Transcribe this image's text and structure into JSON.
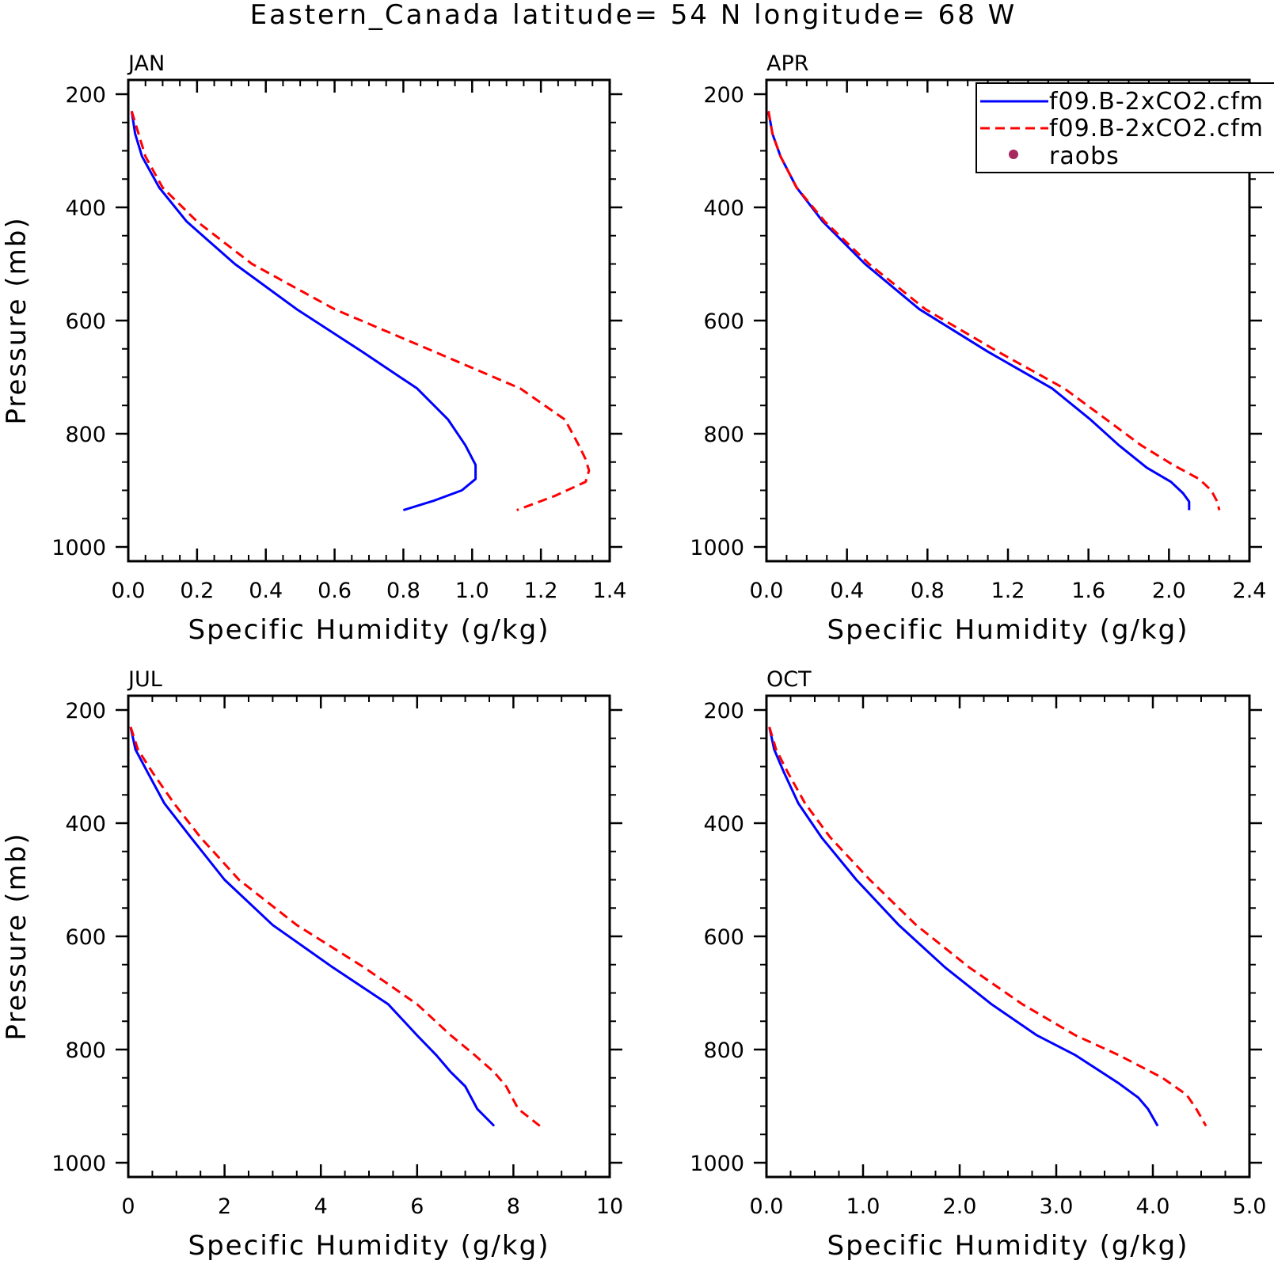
{
  "figure": {
    "title": "Eastern_Canada  latitude= 54 N longitude= 68 W"
  },
  "colors": {
    "series1": "#0000ff",
    "series2": "#ff0000",
    "raobs": "#a52a5f",
    "axes": "#000000"
  },
  "legend": {
    "placement": "top-right of APR panel",
    "entries": [
      {
        "label": "f09.B-2xCO2.cfm",
        "style": "solid",
        "color": "#0000ff"
      },
      {
        "label": "f09.B-2xCO2.cfm",
        "style": "dashed",
        "color": "#ff0000"
      },
      {
        "label": "raobs",
        "style": "marker",
        "color": "#a52a5f"
      }
    ]
  },
  "chart_data": [
    {
      "type": "line",
      "title": "JAN",
      "xlabel": "Specific Humidity (g/kg)",
      "ylabel": "Pressure (mb)",
      "xlim": [
        0,
        1.4
      ],
      "ylim": [
        200,
        1000
      ],
      "y_inverted": true,
      "xticks": [
        "0.0",
        "0.2",
        "0.4",
        "0.6",
        "0.8",
        "1.0",
        "1.2",
        "1.4"
      ],
      "yticks": [
        "200",
        "400",
        "600",
        "800",
        "1000"
      ],
      "series": [
        {
          "style": "solid",
          "color": "#0000ff",
          "x": [
            0.01,
            0.02,
            0.04,
            0.09,
            0.17,
            0.31,
            0.49,
            0.68,
            0.84,
            0.93,
            0.98,
            1.01,
            1.01,
            0.97,
            0.89,
            0.8
          ],
          "y": [
            230,
            270,
            310,
            365,
            425,
            500,
            580,
            655,
            720,
            775,
            820,
            855,
            880,
            900,
            918,
            935
          ]
        },
        {
          "style": "dashed",
          "color": "#ff0000",
          "x": [
            0.01,
            0.03,
            0.05,
            0.1,
            0.2,
            0.36,
            0.6,
            0.89,
            1.14,
            1.27,
            1.31,
            1.33,
            1.34,
            1.33,
            1.24,
            1.13
          ],
          "y": [
            230,
            270,
            310,
            365,
            425,
            500,
            580,
            655,
            720,
            775,
            820,
            845,
            865,
            885,
            910,
            935
          ]
        }
      ]
    },
    {
      "type": "line",
      "title": "APR",
      "xlabel": "Specific Humidity (g/kg)",
      "ylabel": "",
      "xlim": [
        0,
        2.4
      ],
      "ylim": [
        200,
        1000
      ],
      "y_inverted": true,
      "xticks": [
        "0.0",
        "0.4",
        "0.8",
        "1.2",
        "1.6",
        "2.0",
        "2.4"
      ],
      "yticks": [
        "200",
        "400",
        "600",
        "800",
        "1000"
      ],
      "series": [
        {
          "style": "solid",
          "color": "#0000ff",
          "x": [
            0.01,
            0.03,
            0.07,
            0.15,
            0.28,
            0.49,
            0.76,
            1.1,
            1.42,
            1.61,
            1.75,
            1.89,
            2.01,
            2.07,
            2.1,
            2.1
          ],
          "y": [
            230,
            270,
            310,
            365,
            425,
            500,
            580,
            655,
            720,
            775,
            820,
            860,
            885,
            905,
            920,
            935
          ]
        },
        {
          "style": "dashed",
          "color": "#ff0000",
          "x": [
            0.01,
            0.03,
            0.07,
            0.15,
            0.29,
            0.51,
            0.79,
            1.15,
            1.48,
            1.69,
            1.86,
            2.02,
            2.15,
            2.21,
            2.24,
            2.25
          ],
          "y": [
            230,
            270,
            310,
            365,
            425,
            500,
            580,
            655,
            720,
            775,
            820,
            855,
            880,
            900,
            920,
            935
          ]
        }
      ]
    },
    {
      "type": "line",
      "title": "JUL",
      "xlabel": "Specific Humidity (g/kg)",
      "ylabel": "Pressure (mb)",
      "xlim": [
        0,
        10
      ],
      "ylim": [
        200,
        1000
      ],
      "y_inverted": true,
      "xticks": [
        "0",
        "2",
        "4",
        "6",
        "8",
        "10"
      ],
      "yticks": [
        "200",
        "400",
        "600",
        "800",
        "1000"
      ],
      "series": [
        {
          "style": "solid",
          "color": "#0000ff",
          "x": [
            0.05,
            0.15,
            0.4,
            0.75,
            1.3,
            2.0,
            3.0,
            4.25,
            5.4,
            6.0,
            6.4,
            6.7,
            7.0,
            7.25,
            7.6
          ],
          "y": [
            230,
            270,
            310,
            365,
            425,
            500,
            580,
            655,
            720,
            775,
            810,
            840,
            865,
            905,
            935
          ]
        },
        {
          "style": "dashed",
          "color": "#ff0000",
          "x": [
            0.05,
            0.2,
            0.5,
            0.95,
            1.5,
            2.3,
            3.5,
            4.9,
            6.0,
            6.7,
            7.2,
            7.6,
            7.85,
            8.1,
            8.55
          ],
          "y": [
            230,
            270,
            310,
            365,
            425,
            500,
            580,
            655,
            720,
            775,
            810,
            840,
            865,
            905,
            935
          ]
        }
      ]
    },
    {
      "type": "line",
      "title": "OCT",
      "xlabel": "Specific Humidity (g/kg)",
      "ylabel": "",
      "xlim": [
        0,
        5.0
      ],
      "ylim": [
        200,
        1000
      ],
      "y_inverted": true,
      "xticks": [
        "0.0",
        "1.0",
        "2.0",
        "3.0",
        "4.0",
        "5.0"
      ],
      "yticks": [
        "200",
        "400",
        "600",
        "800",
        "1000"
      ],
      "series": [
        {
          "style": "solid",
          "color": "#0000ff",
          "x": [
            0.03,
            0.08,
            0.18,
            0.33,
            0.57,
            0.93,
            1.37,
            1.85,
            2.33,
            2.8,
            3.2,
            3.65,
            3.85,
            3.95,
            4.05
          ],
          "y": [
            230,
            270,
            310,
            365,
            425,
            500,
            580,
            655,
            720,
            775,
            810,
            860,
            885,
            905,
            935
          ]
        },
        {
          "style": "dashed",
          "color": "#ff0000",
          "x": [
            0.03,
            0.1,
            0.22,
            0.4,
            0.66,
            1.07,
            1.55,
            2.1,
            2.65,
            3.2,
            3.65,
            4.1,
            4.35,
            4.45,
            4.55
          ],
          "y": [
            230,
            270,
            310,
            365,
            425,
            500,
            580,
            655,
            720,
            775,
            810,
            850,
            880,
            905,
            935
          ]
        }
      ]
    }
  ]
}
